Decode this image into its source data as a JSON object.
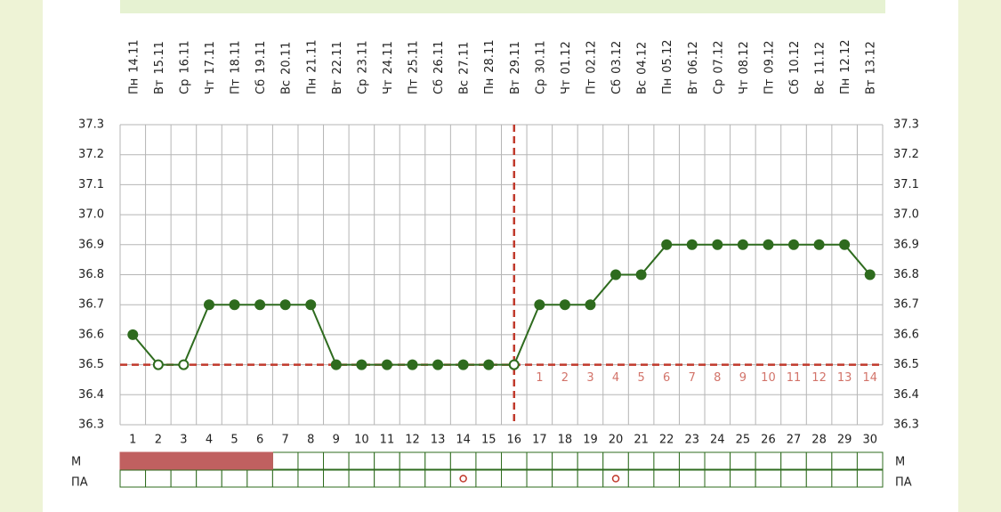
{
  "chart_data": {
    "type": "line",
    "weekdays": [
      "Пн",
      "Вт",
      "Ср",
      "Чт",
      "Пт",
      "Сб",
      "Вс",
      "Пн",
      "Вт",
      "Ср",
      "Чт",
      "Пт",
      "Сб",
      "Вс",
      "Пн",
      "Вт",
      "Ср",
      "Чт",
      "Пт",
      "Сб",
      "Вс",
      "Пн",
      "Вт",
      "Ср",
      "Чт",
      "Пт",
      "Сб",
      "Вс",
      "Пн",
      "Вт"
    ],
    "categories": [
      "14.11",
      "15.11",
      "16.11",
      "17.11",
      "18.11",
      "19.11",
      "20.11",
      "21.11",
      "22.11",
      "23.11",
      "24.11",
      "25.11",
      "26.11",
      "27.11",
      "28.11",
      "29.11",
      "30.11",
      "01.12",
      "02.12",
      "03.12",
      "04.12",
      "05.12",
      "06.12",
      "07.12",
      "08.12",
      "09.12",
      "10.12",
      "11.12",
      "12.12",
      "13.12"
    ],
    "x": [
      1,
      2,
      3,
      4,
      5,
      6,
      7,
      8,
      9,
      10,
      11,
      12,
      13,
      14,
      15,
      16,
      17,
      18,
      19,
      20,
      21,
      22,
      23,
      24,
      25,
      26,
      27,
      28,
      29,
      30
    ],
    "values": [
      36.6,
      36.5,
      36.5,
      36.7,
      36.7,
      36.7,
      36.7,
      36.7,
      36.5,
      36.5,
      36.5,
      36.5,
      36.5,
      36.5,
      36.5,
      36.5,
      36.7,
      36.7,
      36.7,
      36.8,
      36.8,
      36.9,
      36.9,
      36.9,
      36.9,
      36.9,
      36.9,
      36.9,
      36.9,
      36.8
    ],
    "hollow_days": [
      2,
      3,
      16
    ],
    "color": "#2e6b1e",
    "ylim": [
      36.3,
      37.3
    ],
    "yticks": [
      36.3,
      36.4,
      36.5,
      36.6,
      36.7,
      36.8,
      36.9,
      {
        "value": 37.0,
        "label": "37.0"
      },
      37.1,
      37.2,
      37.3
    ],
    "grid": true,
    "coverline": 36.5,
    "ovulation_day": 16,
    "marker_color": "#c0392b",
    "luteal_labels": [
      null,
      null,
      null,
      null,
      null,
      null,
      null,
      null,
      null,
      null,
      null,
      null,
      null,
      null,
      null,
      null,
      1,
      2,
      3,
      4,
      5,
      6,
      7,
      8,
      9,
      10,
      11,
      12,
      13,
      14
    ],
    "m_label": "М",
    "pa_label": "ПА",
    "m_days": [
      1,
      2,
      3,
      4,
      5,
      6
    ],
    "pa_days": [
      14,
      20
    ],
    "m_color": "#c06060"
  }
}
